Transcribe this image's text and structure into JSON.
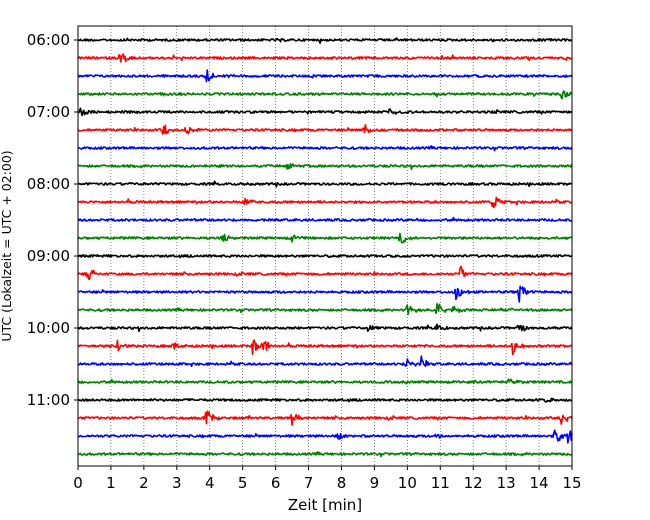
{
  "chart_data": {
    "type": "line",
    "title": "",
    "xlabel": "Zeit  [min]",
    "ylabel": "UTC (Lokalzeit = UTC + 02:00)",
    "xlim": [
      0,
      15
    ],
    "x_ticks": [
      "0",
      "1",
      "2",
      "3",
      "4",
      "5",
      "6",
      "7",
      "8",
      "9",
      "10",
      "11",
      "12",
      "13",
      "14",
      "15"
    ],
    "y_ticks": [
      "06:00",
      "07:00",
      "08:00",
      "09:00",
      "10:00",
      "11:00"
    ],
    "grid": "vertical dotted",
    "traces": [
      {
        "start": "06:00",
        "color": "#000000",
        "events": []
      },
      {
        "start": "06:15",
        "color": "#ff0000",
        "events": [
          {
            "t": 1.3,
            "amp": 9
          }
        ]
      },
      {
        "start": "06:30",
        "color": "#0000ff",
        "events": [
          {
            "t": 3.9,
            "amp": 9
          }
        ]
      },
      {
        "start": "06:45",
        "color": "#008000",
        "events": [
          {
            "t": 14.7,
            "amp": 7
          }
        ]
      },
      {
        "start": "07:00",
        "color": "#000000",
        "events": [
          {
            "t": 0.1,
            "amp": 7
          },
          {
            "t": 9.5,
            "amp": 6
          }
        ]
      },
      {
        "start": "07:15",
        "color": "#ff0000",
        "events": [
          {
            "t": 2.6,
            "amp": 7
          },
          {
            "t": 3.3,
            "amp": 5
          },
          {
            "t": 8.7,
            "amp": 7
          }
        ]
      },
      {
        "start": "07:30",
        "color": "#0000ff",
        "events": []
      },
      {
        "start": "07:45",
        "color": "#008000",
        "events": [
          {
            "t": 6.3,
            "amp": 5
          }
        ]
      },
      {
        "start": "08:00",
        "color": "#000000",
        "events": []
      },
      {
        "start": "08:15",
        "color": "#ff0000",
        "events": [
          {
            "t": 5.1,
            "amp": 5
          },
          {
            "t": 12.6,
            "amp": 10
          }
        ]
      },
      {
        "start": "08:30",
        "color": "#0000ff",
        "events": []
      },
      {
        "start": "08:45",
        "color": "#008000",
        "events": [
          {
            "t": 4.4,
            "amp": 4
          },
          {
            "t": 6.5,
            "amp": 4
          },
          {
            "t": 9.8,
            "amp": 10
          }
        ]
      },
      {
        "start": "09:00",
        "color": "#000000",
        "events": []
      },
      {
        "start": "09:15",
        "color": "#ff0000",
        "events": [
          {
            "t": 0.3,
            "amp": 8
          },
          {
            "t": 11.6,
            "amp": 10
          }
        ]
      },
      {
        "start": "09:30",
        "color": "#0000ff",
        "events": [
          {
            "t": 11.5,
            "amp": 10
          },
          {
            "t": 13.4,
            "amp": 9
          }
        ]
      },
      {
        "start": "09:45",
        "color": "#008000",
        "events": [
          {
            "t": 10.0,
            "amp": 7
          },
          {
            "t": 10.9,
            "amp": 8
          },
          {
            "t": 11.4,
            "amp": 5
          }
        ]
      },
      {
        "start": "10:00",
        "color": "#000000",
        "events": [
          {
            "t": 8.8,
            "amp": 5
          },
          {
            "t": 10.9,
            "amp": 5
          },
          {
            "t": 13.4,
            "amp": 6
          }
        ]
      },
      {
        "start": "10:15",
        "color": "#ff0000",
        "events": [
          {
            "t": 1.2,
            "amp": 6
          },
          {
            "t": 2.9,
            "amp": 5
          },
          {
            "t": 5.3,
            "amp": 9
          },
          {
            "t": 5.6,
            "amp": 9
          },
          {
            "t": 13.2,
            "amp": 9
          }
        ]
      },
      {
        "start": "10:30",
        "color": "#0000ff",
        "events": [
          {
            "t": 10.0,
            "amp": 6
          },
          {
            "t": 10.4,
            "amp": 9
          }
        ]
      },
      {
        "start": "10:45",
        "color": "#008000",
        "events": [
          {
            "t": 13.1,
            "amp": 5
          }
        ]
      },
      {
        "start": "11:00",
        "color": "#000000",
        "events": [
          {
            "t": 14.2,
            "amp": 4
          }
        ]
      },
      {
        "start": "11:15",
        "color": "#ff0000",
        "events": [
          {
            "t": 3.9,
            "amp": 9
          },
          {
            "t": 6.5,
            "amp": 9
          },
          {
            "t": 14.7,
            "amp": 9
          }
        ]
      },
      {
        "start": "11:30",
        "color": "#0000ff",
        "events": [
          {
            "t": 7.9,
            "amp": 4
          },
          {
            "t": 10.9,
            "amp": 4
          },
          {
            "t": 14.5,
            "amp": 9
          },
          {
            "t": 14.9,
            "amp": 9
          }
        ]
      },
      {
        "start": "11:45",
        "color": "#008000",
        "events": []
      }
    ]
  }
}
